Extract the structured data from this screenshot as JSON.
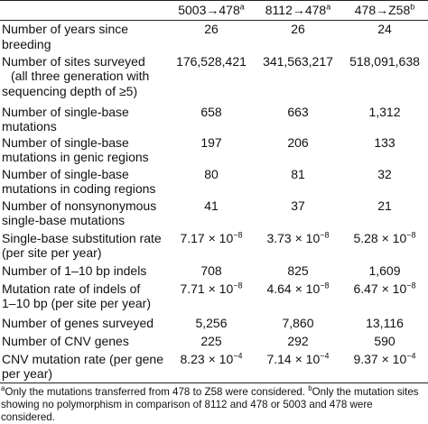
{
  "table": {
    "header": [
      "",
      {
        "text": "5003→478",
        "sup": "a"
      },
      {
        "text": "8112→478",
        "sup": "a"
      },
      {
        "text": "478→Z58",
        "sup": "b"
      }
    ],
    "rows": [
      {
        "label": [
          "Number of years since",
          "breeding"
        ],
        "values": [
          "26",
          "26",
          "24"
        ]
      },
      {
        "label": [
          "Number of sites surveyed",
          "(all three generation with",
          "sequencing depth of ≥5)"
        ],
        "values": [
          "176,528,421",
          "341,563,217",
          "518,091,638"
        ]
      },
      {
        "label": [
          "Number of single-base",
          "mutations"
        ],
        "values": [
          "658",
          "663",
          "1,312"
        ]
      },
      {
        "label": [
          "Number of single-base",
          "mutations in genic regions"
        ],
        "values": [
          "197",
          "206",
          "133"
        ]
      },
      {
        "label": [
          "Number of single-base",
          "mutations in coding regions"
        ],
        "values": [
          "80",
          "81",
          "32"
        ]
      },
      {
        "label": [
          "Number of nonsynonymous",
          "single-base mutations"
        ],
        "values": [
          "41",
          "37",
          "21"
        ]
      },
      {
        "label": [
          "Single-base substitution rate",
          "(per site per year)"
        ],
        "values": [
          {
            "base": "7.17 × 10",
            "exp": "−8"
          },
          {
            "base": "3.73 × 10",
            "exp": "−8"
          },
          {
            "base": "5.28 × 10",
            "exp": "−8"
          }
        ]
      },
      {
        "label": [
          "Number of 1–10 bp indels"
        ],
        "values": [
          "708",
          "825",
          "1,609"
        ]
      },
      {
        "label": [
          "Mutation rate of indels of",
          "1–10 bp (per site per year)"
        ],
        "values": [
          {
            "base": "7.71 × 10",
            "exp": "−8"
          },
          {
            "base": "4.64 × 10",
            "exp": "−8"
          },
          {
            "base": "6.47 × 10",
            "exp": "−8"
          }
        ]
      },
      {
        "label": [
          "Number of genes surveyed"
        ],
        "values": [
          "5,256",
          "7,860",
          "13,116"
        ]
      },
      {
        "label": [
          "Number of CNV genes"
        ],
        "values": [
          "225",
          "292",
          "590"
        ]
      },
      {
        "label": [
          "CNV mutation rate (per gene",
          "per year)"
        ],
        "values": [
          {
            "base": "8.23 × 10",
            "exp": "−4"
          },
          {
            "base": "7.14 × 10",
            "exp": "−4"
          },
          {
            "base": "9.37 × 10",
            "exp": "−4"
          }
        ]
      }
    ],
    "footnote": [
      {
        "sup": "a",
        "text": "Only the mutations transferred from 478 to Z58 were considered. "
      },
      {
        "sup": "b",
        "text": "Only the mutation sites showing no polymorphism in comparison of 8112 and 478 or 5003 and 478 were considered."
      }
    ]
  }
}
